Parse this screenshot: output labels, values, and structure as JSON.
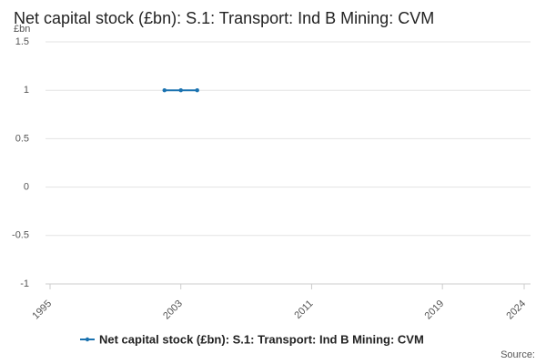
{
  "chart_data": {
    "type": "line",
    "title": "Net capital stock (£bn): S.1: Transport: Ind B Mining: CVM",
    "y_label": "£bn",
    "source": "Source:",
    "x": [
      2002,
      2003,
      2004
    ],
    "series": [
      {
        "name": "Net capital stock (£bn): S.1: Transport: Ind B Mining: CVM",
        "color": "#1a72b0",
        "values": [
          1,
          1,
          1
        ]
      }
    ],
    "xlim": [
      1995,
      2024
    ],
    "xticks": [
      1995,
      2003,
      2011,
      2019,
      2024
    ],
    "ylim": [
      -1,
      1.5
    ],
    "yticks": [
      -1,
      -0.5,
      0,
      0.5,
      1,
      1.5
    ],
    "grid": true
  }
}
